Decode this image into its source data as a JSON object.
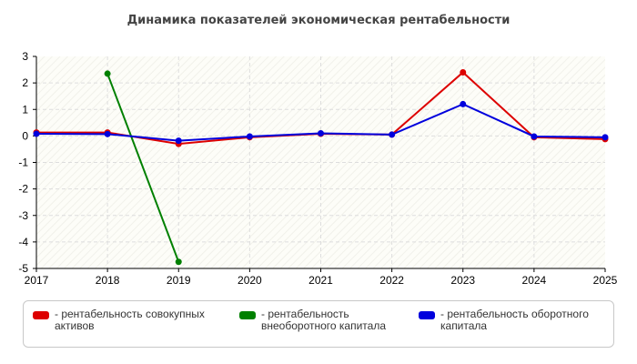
{
  "chart_data": {
    "type": "line",
    "title": "Динамика показателей экономическая рентабельности",
    "x": [
      2017,
      2018,
      2019,
      2020,
      2021,
      2022,
      2023,
      2024,
      2025
    ],
    "x_tick_labels": [
      "2017",
      "2018",
      "2019",
      "2020",
      "2021",
      "2022",
      "2023",
      "2024",
      "2025"
    ],
    "ylim": [
      -5,
      3
    ],
    "y_ticks": [
      3,
      2,
      1,
      0,
      -1,
      -2,
      -3,
      -4,
      -5
    ],
    "y_tick_labels": [
      "3",
      "2",
      "1",
      "0",
      "-1",
      "-2",
      "-3",
      "-4",
      "-5"
    ],
    "grid": true,
    "legend_position": "bottom",
    "series": [
      {
        "name": "- рентабельность совокупных активов",
        "color": "#dd0000",
        "values": [
          0.13,
          0.13,
          -0.3,
          -0.05,
          0.08,
          0.05,
          2.4,
          -0.05,
          -0.12
        ]
      },
      {
        "name": "- рентабельность внеоборотного капитала",
        "color": "#008000",
        "values": [
          null,
          2.35,
          -4.75,
          null,
          null,
          null,
          null,
          null,
          null
        ]
      },
      {
        "name": "- рентабельность оборотного капитала",
        "color": "#0000dd",
        "values": [
          0.08,
          0.07,
          -0.18,
          -0.02,
          0.1,
          0.05,
          1.2,
          -0.02,
          -0.05
        ]
      }
    ]
  }
}
